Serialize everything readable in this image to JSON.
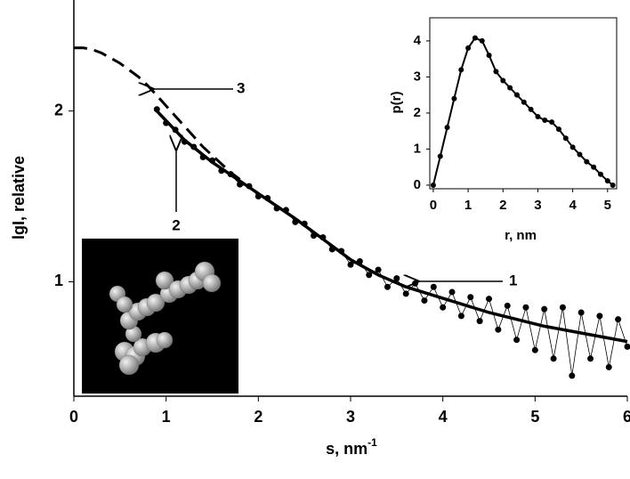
{
  "chart_data": [
    {
      "type": "line",
      "xlabel": "s, nm",
      "xlabel_superscript": "-1",
      "ylabel": "lgI, relative",
      "xlim": [
        0,
        6
      ],
      "ylim": [
        0.33,
        2.65
      ],
      "xticks": [
        0,
        1,
        2,
        3,
        4,
        5,
        6
      ],
      "yticks": [
        1,
        2
      ],
      "annotations": [
        "1",
        "2",
        "3"
      ],
      "series": [
        {
          "color": "#000000",
          "style": "dashed",
          "x": [
            0,
            0.1,
            0.2,
            0.3,
            0.4,
            0.5,
            0.6,
            0.7,
            0.8,
            0.9,
            1.0,
            1.1,
            1.2,
            1.3,
            1.4,
            1.5,
            1.6,
            1.7,
            1.8
          ],
          "values": [
            2.37,
            2.37,
            2.36,
            2.34,
            2.31,
            2.28,
            2.24,
            2.2,
            2.15,
            2.09,
            2.03,
            1.97,
            1.91,
            1.85,
            1.79,
            1.74,
            1.69,
            1.64,
            1.6
          ]
        },
        {
          "color": "#000000",
          "style": "points",
          "x": [
            0.9,
            1.0,
            1.1,
            1.2,
            1.3,
            1.4,
            1.5,
            1.6,
            1.7,
            1.8,
            1.9,
            2.0,
            2.1,
            2.2,
            2.3,
            2.4,
            2.5,
            2.6,
            2.7,
            2.8,
            2.9,
            3.0,
            3.1,
            3.2,
            3.3,
            3.4,
            3.5,
            3.6,
            3.7,
            3.8,
            3.9,
            4.0,
            4.1,
            4.2,
            4.3,
            4.4,
            4.5,
            4.6,
            4.7,
            4.8,
            4.9,
            5.0,
            5.1,
            5.2,
            5.3,
            5.4,
            5.5,
            5.6,
            5.7,
            5.8,
            5.9,
            6.0
          ],
          "values": [
            2.01,
            1.93,
            1.89,
            1.82,
            1.79,
            1.73,
            1.71,
            1.65,
            1.63,
            1.57,
            1.56,
            1.5,
            1.49,
            1.43,
            1.42,
            1.35,
            1.34,
            1.27,
            1.26,
            1.19,
            1.18,
            1.1,
            1.12,
            1.04,
            1.07,
            0.97,
            1.02,
            0.93,
            0.99,
            0.89,
            0.97,
            0.85,
            0.94,
            0.8,
            0.91,
            0.77,
            0.9,
            0.72,
            0.86,
            0.66,
            0.85,
            0.6,
            0.84,
            0.55,
            0.85,
            0.45,
            0.82,
            0.55,
            0.8,
            0.5,
            0.78,
            0.62
          ]
        },
        {
          "color": "#000000",
          "style": "solid",
          "x": [
            0.9,
            1.2,
            1.5,
            1.8,
            2.1,
            2.4,
            2.7,
            3.0,
            3.3,
            3.6,
            3.9,
            4.2,
            4.5,
            4.8,
            5.1,
            5.4,
            5.7,
            6.0
          ],
          "values": [
            2.0,
            1.83,
            1.7,
            1.59,
            1.48,
            1.37,
            1.25,
            1.13,
            1.04,
            0.97,
            0.92,
            0.87,
            0.82,
            0.78,
            0.74,
            0.71,
            0.68,
            0.65
          ]
        }
      ]
    },
    {
      "type": "scatter",
      "xlabel": "r, nm",
      "ylabel": "p(r)",
      "xlim": [
        -0.1,
        5.26
      ],
      "ylim": [
        -0.1,
        4.64
      ],
      "xticks": [
        0,
        1,
        2,
        3,
        4,
        5
      ],
      "yticks": [
        0,
        1,
        2,
        3,
        4
      ],
      "color": "#000000",
      "x": [
        0,
        0.2,
        0.4,
        0.6,
        0.8,
        1.0,
        1.2,
        1.4,
        1.6,
        1.8,
        2.0,
        2.2,
        2.4,
        2.6,
        2.8,
        3.0,
        3.2,
        3.4,
        3.6,
        3.8,
        4.0,
        4.2,
        4.4,
        4.6,
        4.8,
        5.0,
        5.15
      ],
      "values": [
        0,
        0.8,
        1.6,
        2.4,
        3.2,
        3.8,
        4.08,
        4.0,
        3.6,
        3.15,
        2.9,
        2.7,
        2.5,
        2.3,
        2.1,
        1.9,
        1.8,
        1.75,
        1.55,
        1.3,
        1.05,
        0.85,
        0.65,
        0.5,
        0.3,
        0.12,
        0
      ]
    }
  ]
}
